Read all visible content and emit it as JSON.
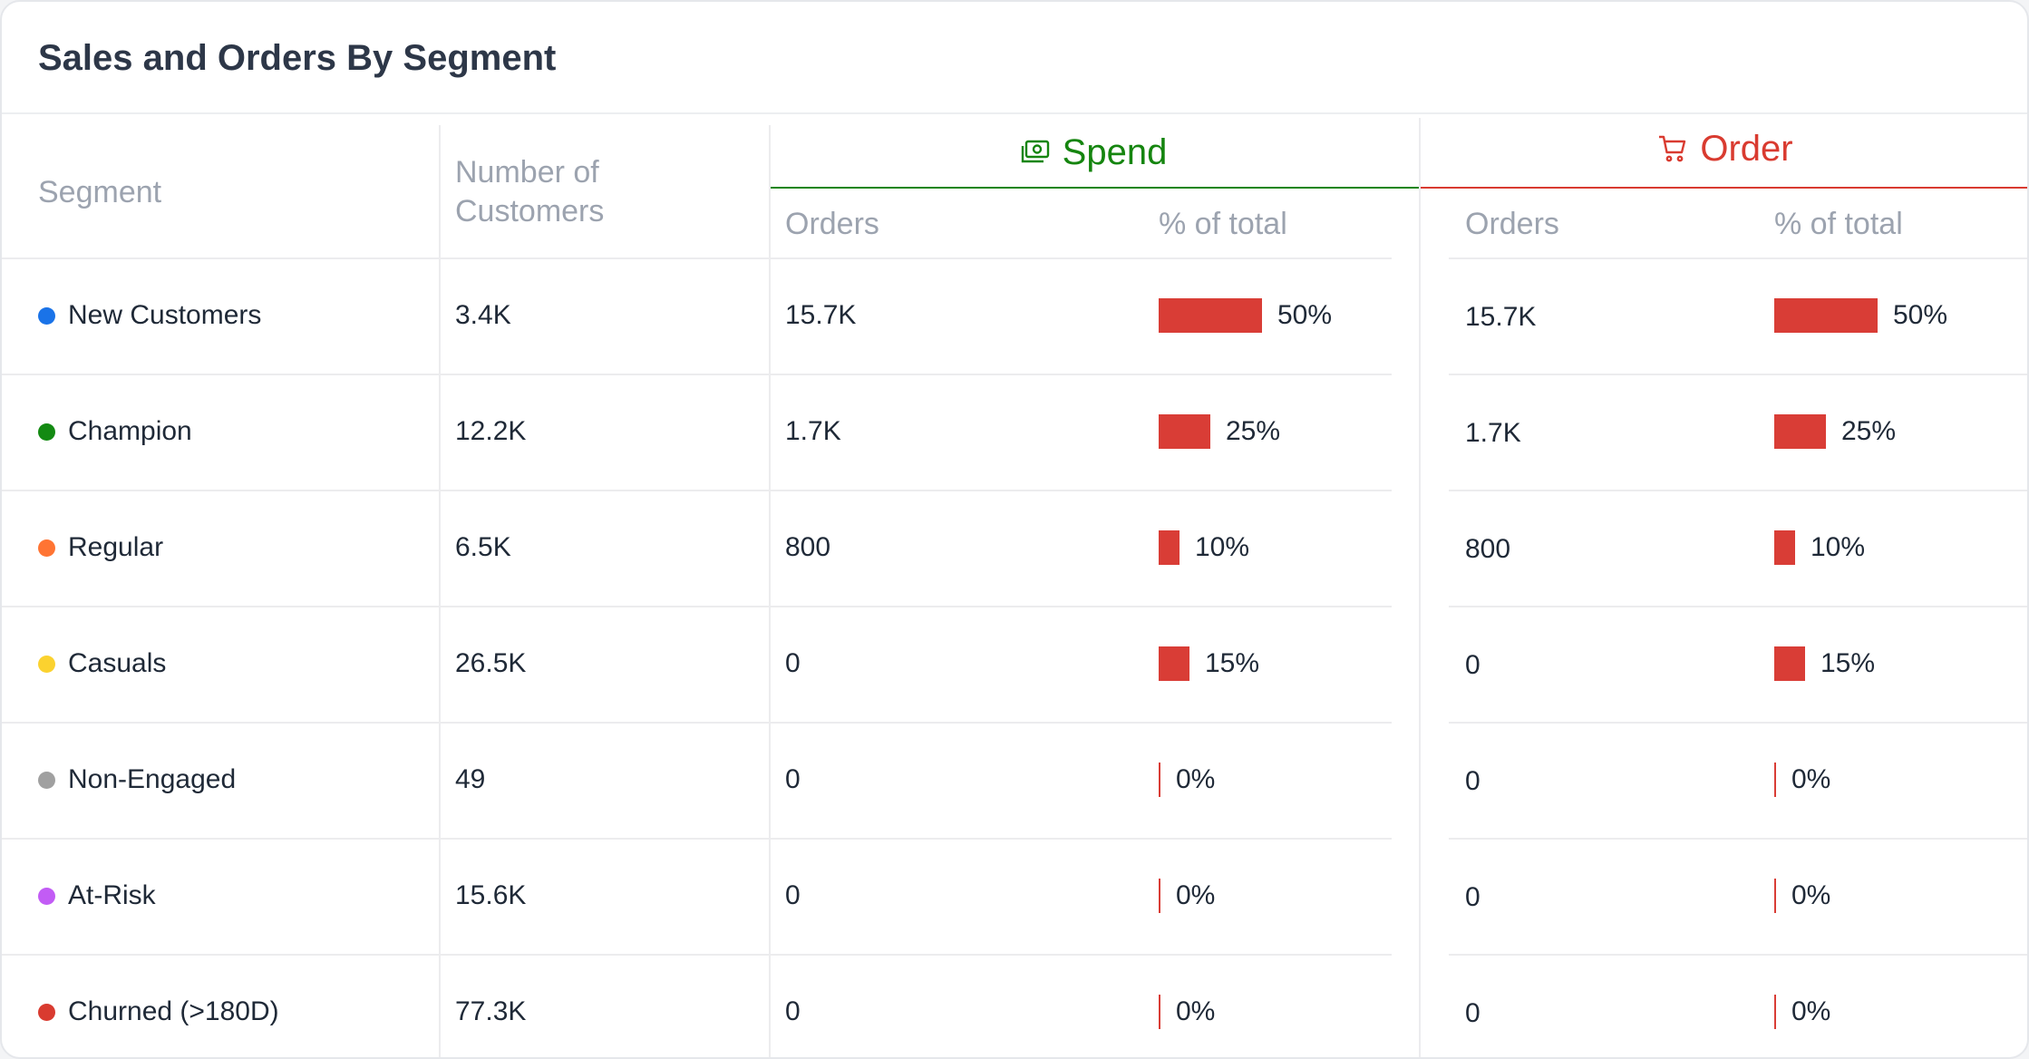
{
  "title": "Sales and Orders By Segment",
  "headers": {
    "segment": "Segment",
    "customers": "Number of Customers",
    "spend_group": "Spend",
    "order_group": "Order",
    "orders": "Orders",
    "pct_total": "% of total"
  },
  "colors": {
    "spend": "#15850f",
    "order": "#d93b30",
    "bar": "#d93d36"
  },
  "icons": {
    "spend": "money-icon",
    "order": "cart-icon"
  },
  "rows": [
    {
      "segment": "New Customers",
      "dot_color": "#1a73e8",
      "customers": "3.4K",
      "spend_orders": "15.7K",
      "spend_pct": "50%",
      "spend_pct_value": 50,
      "order_orders": "15.7K",
      "order_pct": "50%",
      "order_pct_value": 50
    },
    {
      "segment": "Champion",
      "dot_color": "#138a12",
      "customers": "12.2K",
      "spend_orders": "1.7K",
      "spend_pct": "25%",
      "spend_pct_value": 25,
      "order_orders": "1.7K",
      "order_pct": "25%",
      "order_pct_value": 25
    },
    {
      "segment": "Regular",
      "dot_color": "#ff7433",
      "customers": "6.5K",
      "spend_orders": "800",
      "spend_pct": "10%",
      "spend_pct_value": 10,
      "order_orders": "800",
      "order_pct": "10%",
      "order_pct_value": 10
    },
    {
      "segment": "Casuals",
      "dot_color": "#fbd22f",
      "customers": "26.5K",
      "spend_orders": "0",
      "spend_pct": "15%",
      "spend_pct_value": 15,
      "order_orders": "0",
      "order_pct": "15%",
      "order_pct_value": 15
    },
    {
      "segment": "Non-Engaged",
      "dot_color": "#a0a0a0",
      "customers": "49",
      "spend_orders": "0",
      "spend_pct": "0%",
      "spend_pct_value": 0,
      "order_orders": "0",
      "order_pct": "0%",
      "order_pct_value": 0
    },
    {
      "segment": "At-Risk",
      "dot_color": "#c25cf5",
      "customers": "15.6K",
      "spend_orders": "0",
      "spend_pct": "0%",
      "spend_pct_value": 0,
      "order_orders": "0",
      "order_pct": "0%",
      "order_pct_value": 0
    },
    {
      "segment": "Churned (>180D)",
      "dot_color": "#d93b30",
      "customers": "77.3K",
      "spend_orders": "0",
      "spend_pct": "0%",
      "spend_pct_value": 0,
      "order_orders": "0",
      "order_pct": "0%",
      "order_pct_value": 0
    }
  ]
}
